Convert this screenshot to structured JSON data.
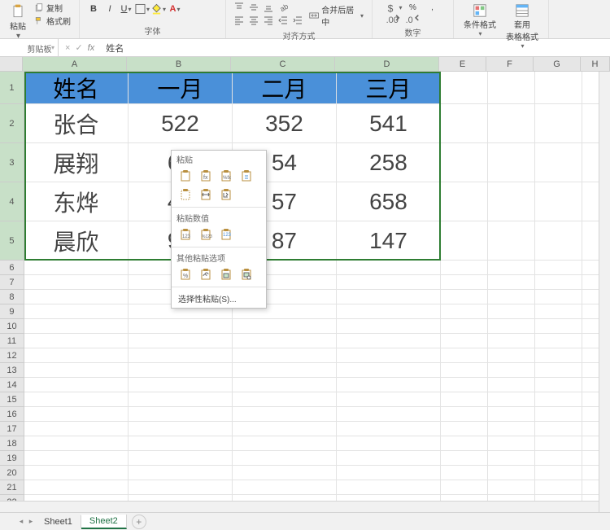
{
  "ribbon": {
    "clipboard": {
      "label": "剪贴板",
      "paste": "粘贴",
      "copy": "复制",
      "format_painter": "格式刷"
    },
    "font": {
      "label": "字体"
    },
    "alignment": {
      "label": "对齐方式",
      "merge": "合并后居中"
    },
    "number": {
      "label": "数字"
    },
    "styles": {
      "cond_format": "条件格式",
      "table_format": "套用\n表格格式"
    }
  },
  "formula_bar": {
    "value": "姓名"
  },
  "columns": [
    {
      "id": "A",
      "width": 128
    },
    {
      "id": "B",
      "width": 128
    },
    {
      "id": "C",
      "width": 128
    },
    {
      "id": "D",
      "width": 128
    },
    {
      "id": "E",
      "width": 58
    },
    {
      "id": "F",
      "width": 58
    },
    {
      "id": "G",
      "width": 58
    },
    {
      "id": "H",
      "width": 36
    }
  ],
  "header_row_height": 40,
  "data_row_height": 48,
  "small_row_height": 18,
  "header_cells": [
    "姓名",
    "一月",
    "二月",
    "三月"
  ],
  "data_rows": [
    [
      "张合",
      "522",
      "352",
      "541"
    ],
    [
      "展翔",
      "62",
      "54",
      "258"
    ],
    [
      "东烨",
      "48",
      "57",
      "658"
    ],
    [
      "晨欣",
      "95",
      "87",
      "147"
    ]
  ],
  "visible_partial": {
    "B": [
      "62",
      "48",
      "95"
    ],
    "C": [
      "54",
      "57",
      "87"
    ]
  },
  "colors": {
    "header_bg": "#4a90d9",
    "selection_border": "#2e7d32"
  },
  "paste_menu": {
    "section1": "粘贴",
    "section2": "粘贴数值",
    "section3": "其他粘贴选项",
    "special": "选择性粘贴(S)..."
  },
  "sheets": {
    "s1": "Sheet1",
    "s2": "Sheet2"
  }
}
